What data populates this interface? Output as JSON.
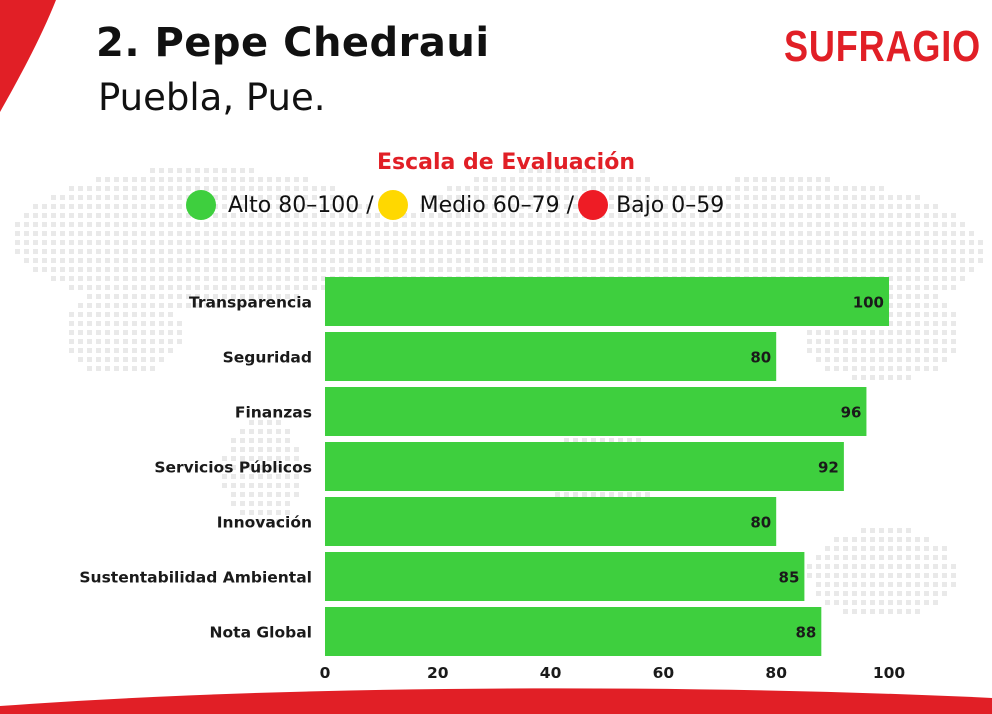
{
  "header": {
    "title": "2. Pepe Chedraui",
    "subtitle": "Puebla, Pue.",
    "brand": "SUFRAGIO"
  },
  "legend": {
    "title": "Escala de Evaluación",
    "items": [
      {
        "label": "Alto 80–100 /",
        "color": "#3ecf3e"
      },
      {
        "label": "Medio 60–79 /",
        "color": "#ffd800"
      },
      {
        "label": "Bajo 0–59",
        "color": "#ee1c25"
      }
    ]
  },
  "colors": {
    "bar": "#3ecf3e",
    "accent": "#e11f26"
  },
  "chart_data": {
    "type": "bar",
    "orientation": "horizontal",
    "categories": [
      "Transparencia",
      "Seguridad",
      "Finanzas",
      "Servicios Públicos",
      "Innovación",
      "Sustentabilidad Ambiental",
      "Nota Global"
    ],
    "values": [
      100,
      80,
      96,
      92,
      80,
      85,
      88
    ],
    "xlim": [
      0,
      100
    ],
    "xticks": [
      0,
      20,
      40,
      60,
      80,
      100
    ],
    "grid": false,
    "data_labels": true
  }
}
